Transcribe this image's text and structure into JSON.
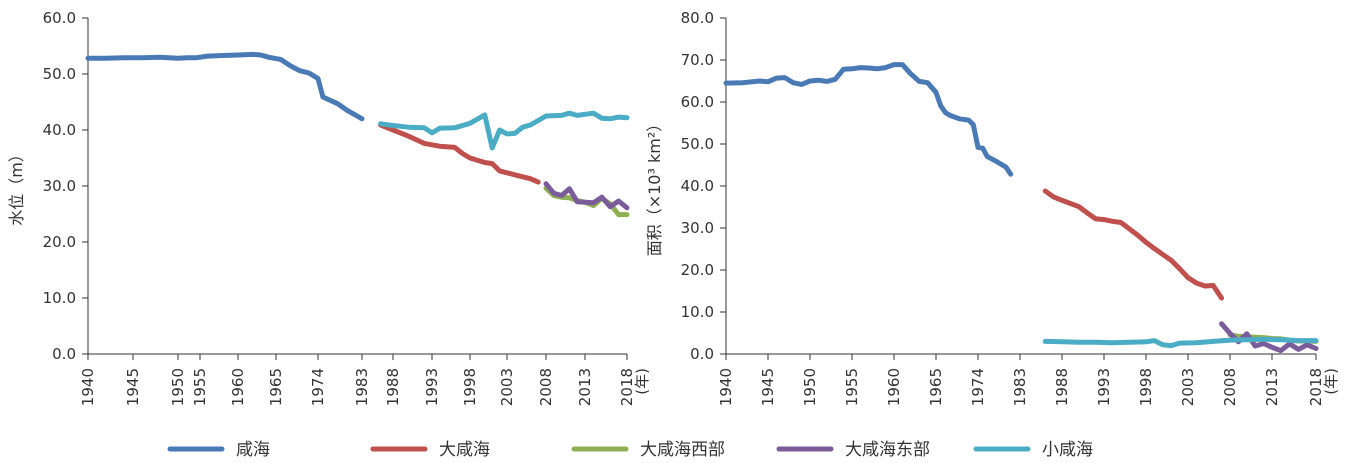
{
  "chart_data": [
    {
      "type": "line",
      "ylabel": "水位（m）",
      "xunit": "(年)",
      "ylim": [
        0,
        60
      ],
      "yticks": [
        "0.0",
        "10.0",
        "20.0",
        "30.0",
        "40.0",
        "50.0",
        "60.0"
      ],
      "xticks": [
        "1940",
        "1945",
        "1950",
        "1955",
        "1960",
        "1965",
        "1974",
        "1983",
        "1988",
        "1993",
        "1998",
        "2003",
        "2008",
        "2013",
        "2018"
      ],
      "series": [
        {
          "name": "咸海",
          "color": "#4a7ab5",
          "points": [
            [
              1940,
              52.8
            ],
            [
              1942,
              52.8
            ],
            [
              1944,
              52.9
            ],
            [
              1946,
              52.9
            ],
            [
              1948,
              53.0
            ],
            [
              1950,
              52.8
            ],
            [
              1952,
              52.9
            ],
            [
              1954,
              52.9
            ],
            [
              1956,
              53.2
            ],
            [
              1958,
              53.3
            ],
            [
              1960,
              53.4
            ],
            [
              1962,
              53.5
            ],
            [
              1963,
              53.4
            ],
            [
              1964,
              53.0
            ],
            [
              1966,
              52.6
            ],
            [
              1968,
              51.5
            ],
            [
              1970,
              50.6
            ],
            [
              1972,
              50.2
            ],
            [
              1974,
              49.2
            ],
            [
              1975,
              45.9
            ],
            [
              1978,
              44.7
            ],
            [
              1980,
              43.5
            ],
            [
              1982,
              42.5
            ],
            [
              1983,
              42.0
            ]
          ]
        },
        {
          "name": "大咸海",
          "color": "#c0504d",
          "points": [
            [
              1986,
              40.9
            ],
            [
              1988,
              40.0
            ],
            [
              1990,
              38.9
            ],
            [
              1992,
              37.6
            ],
            [
              1994,
              37.1
            ],
            [
              1996,
              36.9
            ],
            [
              1997,
              35.8
            ],
            [
              1998,
              35.0
            ],
            [
              2000,
              34.2
            ],
            [
              2001,
              34.0
            ],
            [
              2002,
              32.7
            ],
            [
              2004,
              32.0
            ],
            [
              2006,
              31.3
            ],
            [
              2007,
              30.7
            ]
          ]
        },
        {
          "name": "大咸海西部",
          "color": "#8fb052",
          "points": [
            [
              2008,
              29.6
            ],
            [
              2009,
              28.3
            ],
            [
              2010,
              28.0
            ],
            [
              2011,
              27.9
            ],
            [
              2012,
              27.4
            ],
            [
              2013,
              27.1
            ],
            [
              2014,
              26.5
            ],
            [
              2015,
              27.8
            ],
            [
              2016,
              26.8
            ],
            [
              2017,
              24.9
            ],
            [
              2018,
              24.9
            ]
          ]
        },
        {
          "name": "大咸海东部",
          "color": "#7b5c9b",
          "points": [
            [
              2008,
              30.4
            ],
            [
              2009,
              28.7
            ],
            [
              2010,
              28.3
            ],
            [
              2011,
              29.5
            ],
            [
              2012,
              27.2
            ],
            [
              2013,
              27.1
            ],
            [
              2014,
              27.0
            ],
            [
              2015,
              28.0
            ],
            [
              2016,
              26.3
            ],
            [
              2017,
              27.3
            ],
            [
              2018,
              26.1
            ]
          ]
        },
        {
          "name": "小咸海",
          "color": "#4bacc6",
          "points": [
            [
              1986,
              41.1
            ],
            [
              1988,
              40.8
            ],
            [
              1990,
              40.5
            ],
            [
              1992,
              40.4
            ],
            [
              1993,
              39.5
            ],
            [
              1994,
              40.3
            ],
            [
              1996,
              40.4
            ],
            [
              1998,
              41.2
            ],
            [
              2000,
              42.7
            ],
            [
              2001,
              36.8
            ],
            [
              2002,
              40.0
            ],
            [
              2003,
              39.3
            ],
            [
              2004,
              39.4
            ],
            [
              2005,
              40.5
            ],
            [
              2006,
              40.9
            ],
            [
              2008,
              42.5
            ],
            [
              2010,
              42.6
            ],
            [
              2011,
              43.0
            ],
            [
              2012,
              42.6
            ],
            [
              2013,
              42.8
            ],
            [
              2014,
              43.0
            ],
            [
              2015,
              42.1
            ],
            [
              2016,
              42.0
            ],
            [
              2017,
              42.3
            ],
            [
              2018,
              42.2
            ]
          ]
        }
      ]
    },
    {
      "type": "line",
      "ylabel": "面积（×10³ km²）",
      "xunit": "(年)",
      "ylim": [
        0,
        80
      ],
      "yticks": [
        "0.0",
        "10.0",
        "20.0",
        "30.0",
        "40.0",
        "50.0",
        "60.0",
        "70.0",
        "80.0"
      ],
      "xticks": [
        "1940",
        "1945",
        "1950",
        "1955",
        "1960",
        "1965",
        "1974",
        "1983",
        "1988",
        "1993",
        "1998",
        "2003",
        "2008",
        "2013",
        "2018"
      ],
      "series": [
        {
          "name": "咸海",
          "color": "#4a7ab5",
          "points": [
            [
              1940,
              64.5
            ],
            [
              1942,
              64.6
            ],
            [
              1944,
              65.0
            ],
            [
              1945,
              64.8
            ],
            [
              1946,
              65.7
            ],
            [
              1947,
              65.8
            ],
            [
              1948,
              64.6
            ],
            [
              1949,
              64.2
            ],
            [
              1950,
              65.0
            ],
            [
              1951,
              65.2
            ],
            [
              1952,
              64.9
            ],
            [
              1953,
              65.4
            ],
            [
              1954,
              67.8
            ],
            [
              1955,
              67.9
            ],
            [
              1956,
              68.2
            ],
            [
              1957,
              68.1
            ],
            [
              1958,
              67.9
            ],
            [
              1959,
              68.2
            ],
            [
              1960,
              68.9
            ],
            [
              1961,
              68.9
            ],
            [
              1962,
              66.7
            ],
            [
              1963,
              64.9
            ],
            [
              1964,
              64.6
            ],
            [
              1965,
              62.3
            ],
            [
              1966,
              59.1
            ],
            [
              1967,
              57.5
            ],
            [
              1968,
              56.8
            ],
            [
              1970,
              56.0
            ],
            [
              1972,
              55.7
            ],
            [
              1973,
              54.6
            ],
            [
              1974,
              49.2
            ],
            [
              1975,
              49.0
            ],
            [
              1976,
              47.0
            ],
            [
              1978,
              45.8
            ],
            [
              1980,
              44.5
            ],
            [
              1981,
              42.8
            ]
          ]
        },
        {
          "name": "大咸海",
          "color": "#c0504d",
          "points": [
            [
              1986,
              38.8
            ],
            [
              1987,
              37.4
            ],
            [
              1988,
              36.6
            ],
            [
              1990,
              35.1
            ],
            [
              1991,
              33.6
            ],
            [
              1992,
              32.2
            ],
            [
              1993,
              32.0
            ],
            [
              1994,
              31.6
            ],
            [
              1995,
              31.3
            ],
            [
              1996,
              29.8
            ],
            [
              1997,
              28.3
            ],
            [
              1998,
              26.6
            ],
            [
              1999,
              25.1
            ],
            [
              2000,
              23.7
            ],
            [
              2001,
              22.3
            ],
            [
              2002,
              20.3
            ],
            [
              2003,
              18.2
            ],
            [
              2004,
              16.9
            ],
            [
              2005,
              16.2
            ],
            [
              2006,
              16.3
            ],
            [
              2007,
              13.3
            ]
          ]
        },
        {
          "name": "大咸海西部",
          "color": "#8fb052",
          "points": [
            [
              2008,
              4.6
            ],
            [
              2009,
              4.2
            ],
            [
              2010,
              4.1
            ],
            [
              2011,
              4.0
            ],
            [
              2012,
              3.9
            ],
            [
              2013,
              3.7
            ],
            [
              2014,
              3.6
            ],
            [
              2015,
              3.3
            ],
            [
              2016,
              3.1
            ],
            [
              2017,
              3.1
            ],
            [
              2018,
              3.0
            ]
          ]
        },
        {
          "name": "大咸海东部",
          "color": "#7b5c9b",
          "points": [
            [
              2007,
              7.2
            ],
            [
              2008,
              4.9
            ],
            [
              2009,
              2.9
            ],
            [
              2010,
              4.8
            ],
            [
              2011,
              1.9
            ],
            [
              2012,
              2.5
            ],
            [
              2013,
              1.6
            ],
            [
              2014,
              0.8
            ],
            [
              2015,
              2.4
            ],
            [
              2016,
              1.1
            ],
            [
              2017,
              2.2
            ],
            [
              2018,
              1.3
            ]
          ]
        },
        {
          "name": "小咸海",
          "color": "#4bacc6",
          "points": [
            [
              1986,
              3.0
            ],
            [
              1988,
              2.9
            ],
            [
              1990,
              2.8
            ],
            [
              1992,
              2.8
            ],
            [
              1994,
              2.7
            ],
            [
              1996,
              2.8
            ],
            [
              1998,
              2.9
            ],
            [
              1999,
              3.2
            ],
            [
              2000,
              2.2
            ],
            [
              2001,
              2.0
            ],
            [
              2002,
              2.6
            ],
            [
              2004,
              2.7
            ],
            [
              2006,
              3.0
            ],
            [
              2008,
              3.3
            ],
            [
              2010,
              3.4
            ],
            [
              2012,
              3.5
            ],
            [
              2014,
              3.4
            ],
            [
              2016,
              3.2
            ],
            [
              2018,
              3.2
            ]
          ]
        }
      ]
    }
  ],
  "legend": {
    "position": "bottom",
    "items": [
      {
        "name": "咸海",
        "color": "#4a7ab5"
      },
      {
        "name": "大咸海",
        "color": "#c0504d"
      },
      {
        "name": "大咸海西部",
        "color": "#8fb052"
      },
      {
        "name": "大咸海东部",
        "color": "#7b5c9b"
      },
      {
        "name": "小咸海",
        "color": "#4bacc6"
      }
    ]
  }
}
